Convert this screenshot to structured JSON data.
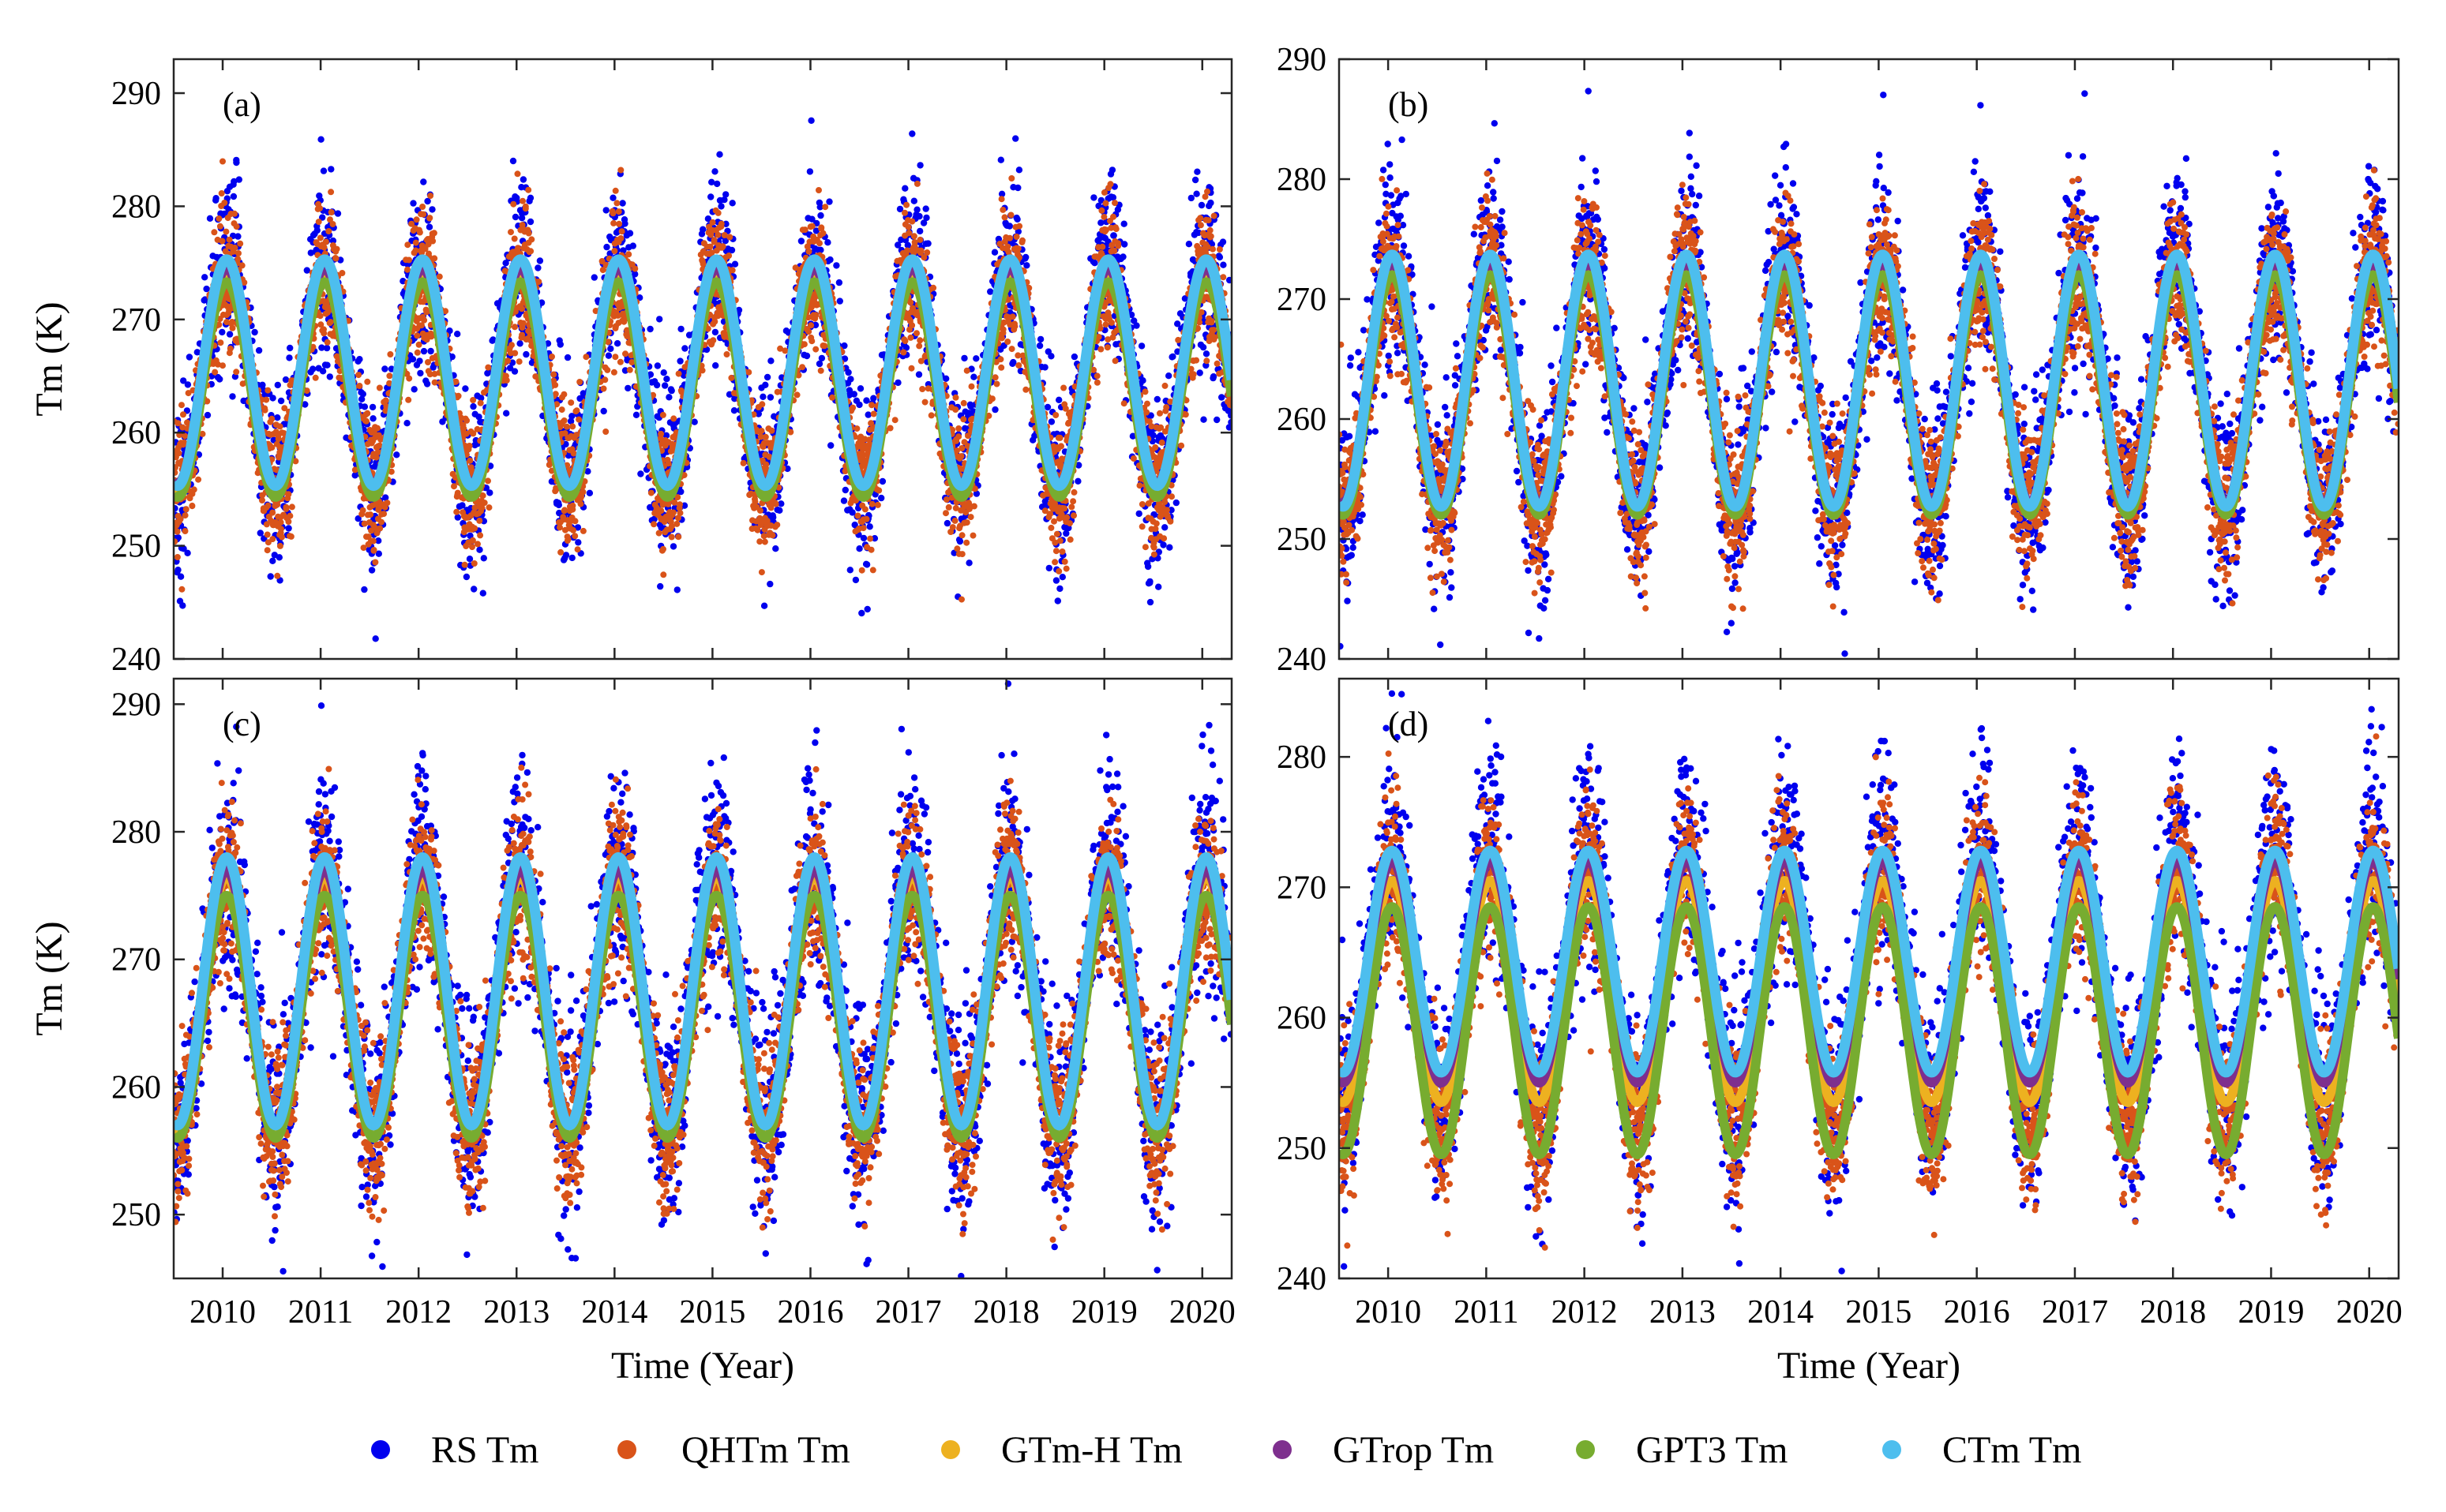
{
  "figure": {
    "xlabel": "Time (Year)",
    "ylabel": "Tm (K)"
  },
  "legend": [
    {
      "name": "RS Tm",
      "color": "#0000ee"
    },
    {
      "name": "QHTm Tm",
      "color": "#d95319"
    },
    {
      "name": "GTm-H Tm",
      "color": "#edb120"
    },
    {
      "name": "GTrop Tm",
      "color": "#7e2f8e"
    },
    {
      "name": "GPT3 Tm",
      "color": "#77ac30"
    },
    {
      "name": "CTm Tm",
      "color": "#4dbeee"
    }
  ],
  "chart_data": [
    {
      "type": "scatter",
      "panel": "(a)",
      "xlim": [
        2009.5,
        2020.3
      ],
      "ylim": [
        240,
        293
      ],
      "xticks": [
        2010,
        2011,
        2012,
        2013,
        2014,
        2015,
        2016,
        2017,
        2018,
        2019,
        2020
      ],
      "yticks": [
        240,
        250,
        260,
        270,
        280,
        290
      ],
      "xlabel": "",
      "ylabel": "Tm (K)",
      "x_tick_labels_shown": false,
      "series": [
        {
          "name": "RS Tm",
          "kind": "scatter",
          "mean": 265,
          "amplitude": 10,
          "noise": 5.5
        },
        {
          "name": "QHTm Tm",
          "kind": "scatter",
          "mean": 264.5,
          "amplitude": 9.5,
          "noise": 4
        },
        {
          "name": "GTm-H Tm",
          "kind": "line",
          "mean": 264.5,
          "amplitude": 9.5
        },
        {
          "name": "GTrop Tm",
          "kind": "line",
          "mean": 265,
          "amplitude": 9.5
        },
        {
          "name": "GPT3 Tm",
          "kind": "line",
          "mean": 263.8,
          "amplitude": 9.5
        },
        {
          "name": "CTm Tm",
          "kind": "line",
          "mean": 265.3,
          "amplitude": 10
        }
      ]
    },
    {
      "type": "scatter",
      "panel": "(b)",
      "xlim": [
        2009.5,
        2020.3
      ],
      "ylim": [
        240,
        290
      ],
      "xticks": [
        2010,
        2011,
        2012,
        2013,
        2014,
        2015,
        2016,
        2017,
        2018,
        2019,
        2020
      ],
      "yticks": [
        240,
        250,
        260,
        270,
        280,
        290
      ],
      "xlabel": "",
      "ylabel": "",
      "x_tick_labels_shown": false,
      "series": [
        {
          "name": "RS Tm",
          "kind": "scatter",
          "mean": 263,
          "amplitude": 10.5,
          "noise": 5.5
        },
        {
          "name": "QHTm Tm",
          "kind": "scatter",
          "mean": 262.5,
          "amplitude": 10,
          "noise": 4
        },
        {
          "name": "GTm-H Tm",
          "kind": "line",
          "mean": 262.5,
          "amplitude": 10
        },
        {
          "name": "GTrop Tm",
          "kind": "line",
          "mean": 263,
          "amplitude": 10
        },
        {
          "name": "GPT3 Tm",
          "kind": "line",
          "mean": 262,
          "amplitude": 10
        },
        {
          "name": "CTm Tm",
          "kind": "line",
          "mean": 263.2,
          "amplitude": 10.5
        }
      ]
    },
    {
      "type": "scatter",
      "panel": "(c)",
      "xlim": [
        2009.5,
        2020.3
      ],
      "ylim": [
        245,
        292
      ],
      "xticks": [
        2010,
        2011,
        2012,
        2013,
        2014,
        2015,
        2016,
        2017,
        2018,
        2019,
        2020
      ],
      "yticks": [
        250,
        260,
        270,
        280,
        290
      ],
      "xlabel": "Time (Year)",
      "ylabel": "Tm (K)",
      "x_tick_labels_shown": true,
      "series": [
        {
          "name": "RS Tm",
          "kind": "scatter",
          "mean": 267,
          "amplitude": 10.5,
          "noise": 5.5
        },
        {
          "name": "QHTm Tm",
          "kind": "scatter",
          "mean": 266.5,
          "amplitude": 10,
          "noise": 4
        },
        {
          "name": "GTm-H Tm",
          "kind": "line",
          "mean": 266.5,
          "amplitude": 10
        },
        {
          "name": "GTrop Tm",
          "kind": "line",
          "mean": 267,
          "amplitude": 10
        },
        {
          "name": "GPT3 Tm",
          "kind": "line",
          "mean": 265.5,
          "amplitude": 9.5
        },
        {
          "name": "CTm Tm",
          "kind": "line",
          "mean": 267.5,
          "amplitude": 10.5
        }
      ]
    },
    {
      "type": "scatter",
      "panel": "(d)",
      "xlim": [
        2009.5,
        2020.3
      ],
      "ylim": [
        240,
        286
      ],
      "xticks": [
        2010,
        2011,
        2012,
        2013,
        2014,
        2015,
        2016,
        2017,
        2018,
        2019,
        2020
      ],
      "yticks": [
        240,
        250,
        260,
        270,
        280
      ],
      "xlabel": "Time (Year)",
      "ylabel": "",
      "x_tick_labels_shown": true,
      "series": [
        {
          "name": "RS Tm",
          "kind": "scatter",
          "mean": 263,
          "amplitude": 10,
          "noise": 5.5
        },
        {
          "name": "QHTm Tm",
          "kind": "scatter",
          "mean": 261.5,
          "amplitude": 10,
          "noise": 4
        },
        {
          "name": "GTm-H Tm",
          "kind": "line",
          "mean": 262,
          "amplitude": 8.5
        },
        {
          "name": "GTrop Tm",
          "kind": "line",
          "mean": 263.5,
          "amplitude": 8.5
        },
        {
          "name": "GPT3 Tm",
          "kind": "line",
          "mean": 259,
          "amplitude": 9.5
        },
        {
          "name": "CTm Tm",
          "kind": "line",
          "mean": 264.3,
          "amplitude": 8.5
        }
      ]
    }
  ]
}
